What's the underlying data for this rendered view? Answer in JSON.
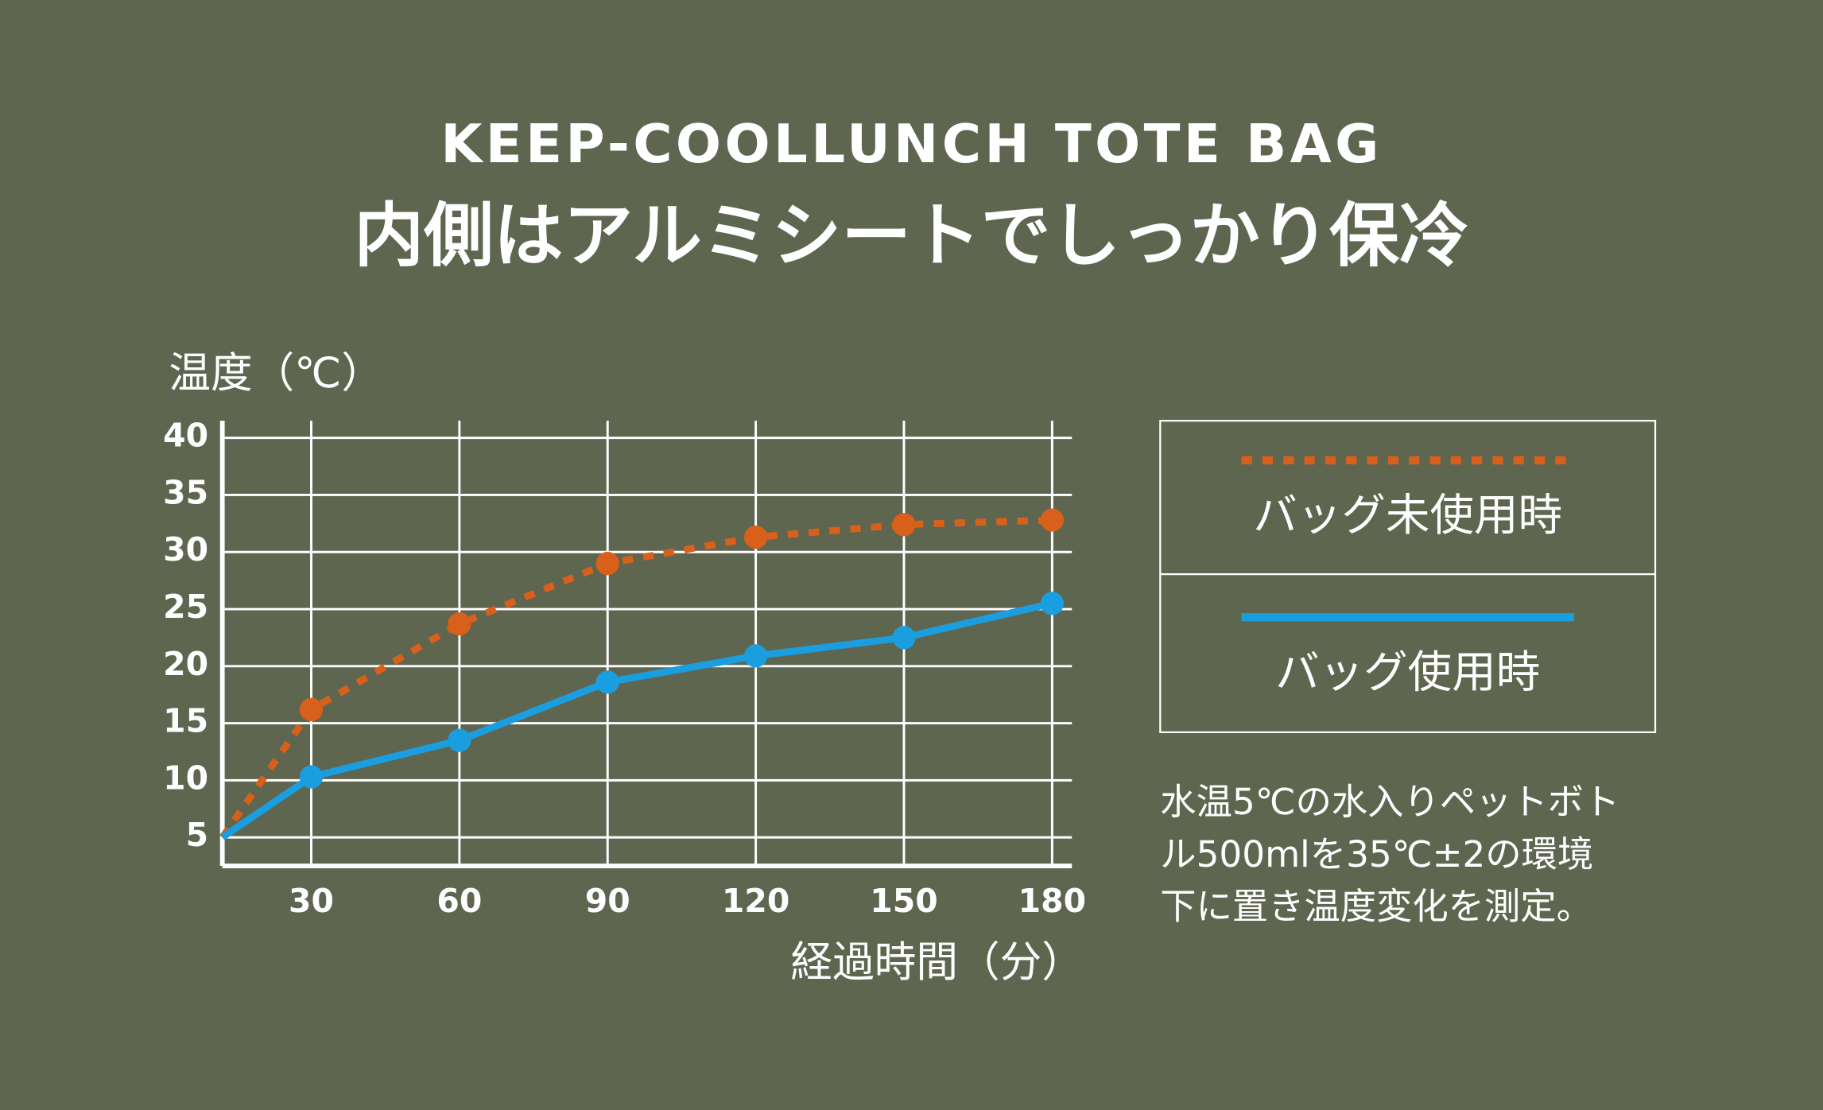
{
  "chart_data": {
    "type": "line",
    "title": "KEEP-COOLLUNCH TOTE BAG",
    "subtitle": "内側はアルミシートでしっかり保冷",
    "ylabel": "温度（℃）",
    "xlabel": "経過時間（分）",
    "x": [
      12,
      30,
      60,
      90,
      120,
      150,
      180
    ],
    "xlim": [
      12,
      184
    ],
    "xticks": [
      30,
      60,
      90,
      120,
      150,
      180
    ],
    "ylim": [
      2.5,
      41.5
    ],
    "yticks": [
      5,
      10,
      15,
      20,
      25,
      30,
      35,
      40
    ],
    "grid": true,
    "series": [
      {
        "name": "バッグ未使用時",
        "color": "#d9601a",
        "line_style": "dotted",
        "values": [
          5,
          16.2,
          23.7,
          29.0,
          31.3,
          32.4,
          32.8
        ]
      },
      {
        "name": "バッグ使用時",
        "color": "#1a9ee0",
        "line_style": "solid",
        "values": [
          5,
          10.3,
          13.5,
          18.6,
          20.9,
          22.5,
          25.5
        ]
      }
    ]
  },
  "note": {
    "lines": [
      "水温5℃の水入りペットボト",
      "ル500mlを35℃±2の環境",
      "下に置き温度変化を測定。"
    ]
  }
}
